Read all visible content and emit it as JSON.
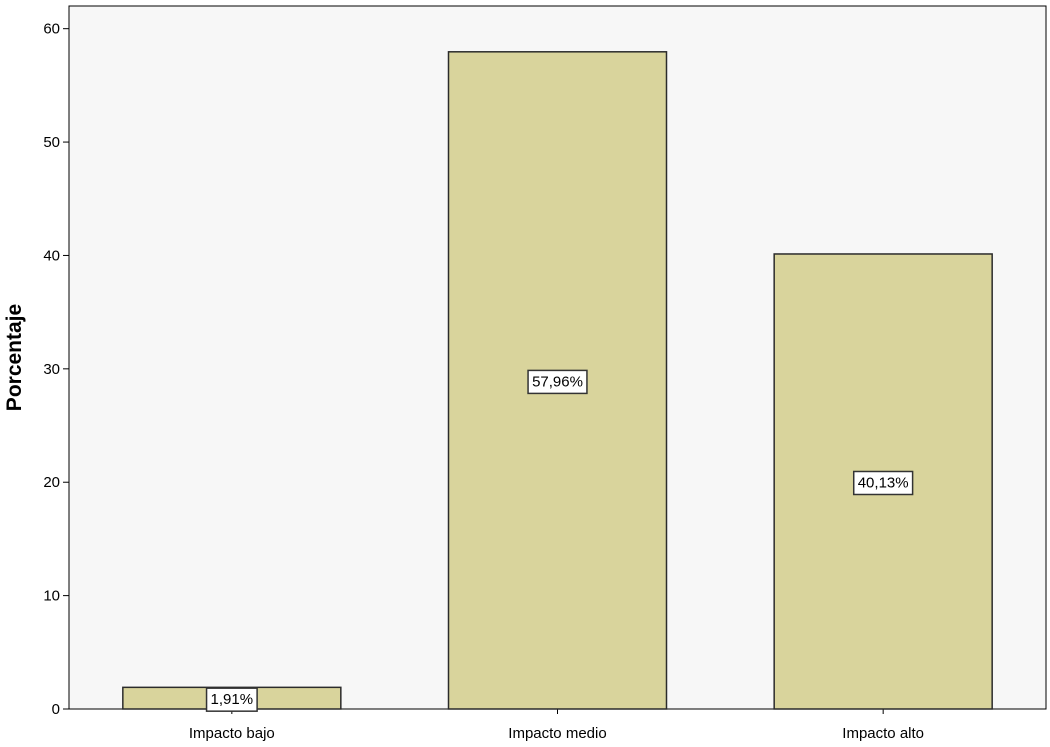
{
  "colors": {
    "plot_background": "#f7f7f7",
    "bar_fill": "#d9d49c",
    "bar_stroke": "#2b2b2b",
    "axis": "#000000",
    "label_box_fill": "#ffffff"
  },
  "chart_data": {
    "type": "bar",
    "categories": [
      "Impacto bajo",
      "Impacto medio",
      "Impacto alto"
    ],
    "values": [
      1.91,
      57.96,
      40.13
    ],
    "data_labels": [
      "1,91%",
      "57,96%",
      "40,13%"
    ],
    "title": "",
    "xlabel": "",
    "ylabel": "Porcentaje",
    "ylim": [
      0,
      62
    ],
    "yticks": [
      0,
      10,
      20,
      30,
      40,
      50,
      60
    ],
    "grid": false,
    "legend": "none"
  }
}
